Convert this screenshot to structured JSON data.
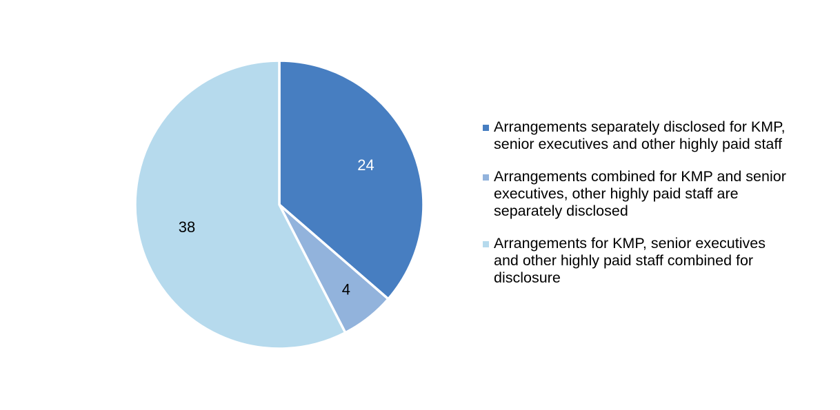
{
  "chart_data": {
    "type": "pie",
    "title": "",
    "slices": [
      {
        "name": "Arrangements separately disclosed for KMP, senior executives and other highly paid staff",
        "value": 24,
        "label": "24",
        "color": "#477EC1",
        "label_color": "#ffffff"
      },
      {
        "name": "Arrangements combined for KMP and senior executives, other highly paid staff are separately disclosed",
        "value": 4,
        "label": "4",
        "color": "#92B3DC",
        "label_color": "#000000"
      },
      {
        "name": "Arrangements for KMP, senior executives and other highly paid staff combined for disclosure",
        "value": 38,
        "label": "38",
        "color": "#B6DAED",
        "label_color": "#000000"
      }
    ],
    "start_angle": "12 o'clock",
    "direction": "clockwise",
    "legend_position": "right"
  }
}
